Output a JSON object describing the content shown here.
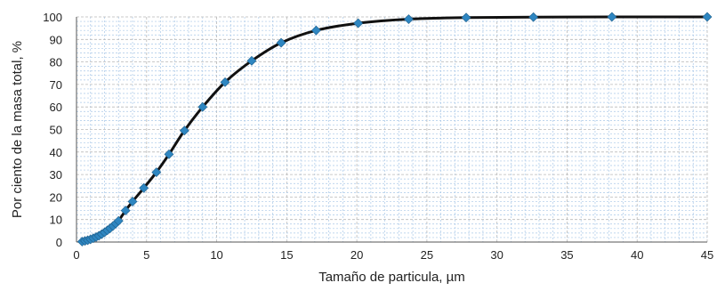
{
  "chart_data": {
    "type": "line",
    "title": "",
    "xlabel": "Tamaño de particula, µm",
    "ylabel": "Por ciento de la masa total, %",
    "xlim": [
      0,
      45
    ],
    "ylim": [
      0,
      100
    ],
    "x_ticks": [
      "0",
      "5",
      "10",
      "15",
      "20",
      "25",
      "30",
      "35",
      "40",
      "45"
    ],
    "y_ticks": [
      "0",
      "10",
      "20",
      "30",
      "40",
      "50",
      "60",
      "70",
      "80",
      "90",
      "100"
    ],
    "grid": true,
    "legend": "none",
    "colors": {
      "line": "#111111",
      "marker": "#2e86c1",
      "minor_grid": "#a9c8e8",
      "major_grid": "#b9b9b9"
    },
    "series": [
      {
        "x": [
          0.4,
          0.6,
          0.8,
          1.0,
          1.2,
          1.4,
          1.6,
          1.8,
          2.0,
          2.2,
          2.4,
          2.6,
          2.8,
          3.0,
          3.5,
          4.0,
          4.8,
          5.7,
          6.6,
          7.7,
          9.0,
          10.6,
          12.5,
          14.6,
          17.1,
          20.1,
          23.7,
          27.8,
          32.6,
          38.2,
          45.0
        ],
        "y": [
          0.2,
          0.5,
          0.8,
          1.2,
          1.7,
          2.2,
          2.8,
          3.5,
          4.3,
          5.2,
          6.1,
          7.1,
          8.2,
          9.4,
          14.0,
          18.0,
          24.0,
          31.0,
          39.0,
          49.5,
          60.0,
          71.0,
          80.5,
          88.5,
          94.0,
          97.2,
          99.0,
          99.7,
          99.9,
          100.0,
          100.0
        ]
      }
    ]
  }
}
